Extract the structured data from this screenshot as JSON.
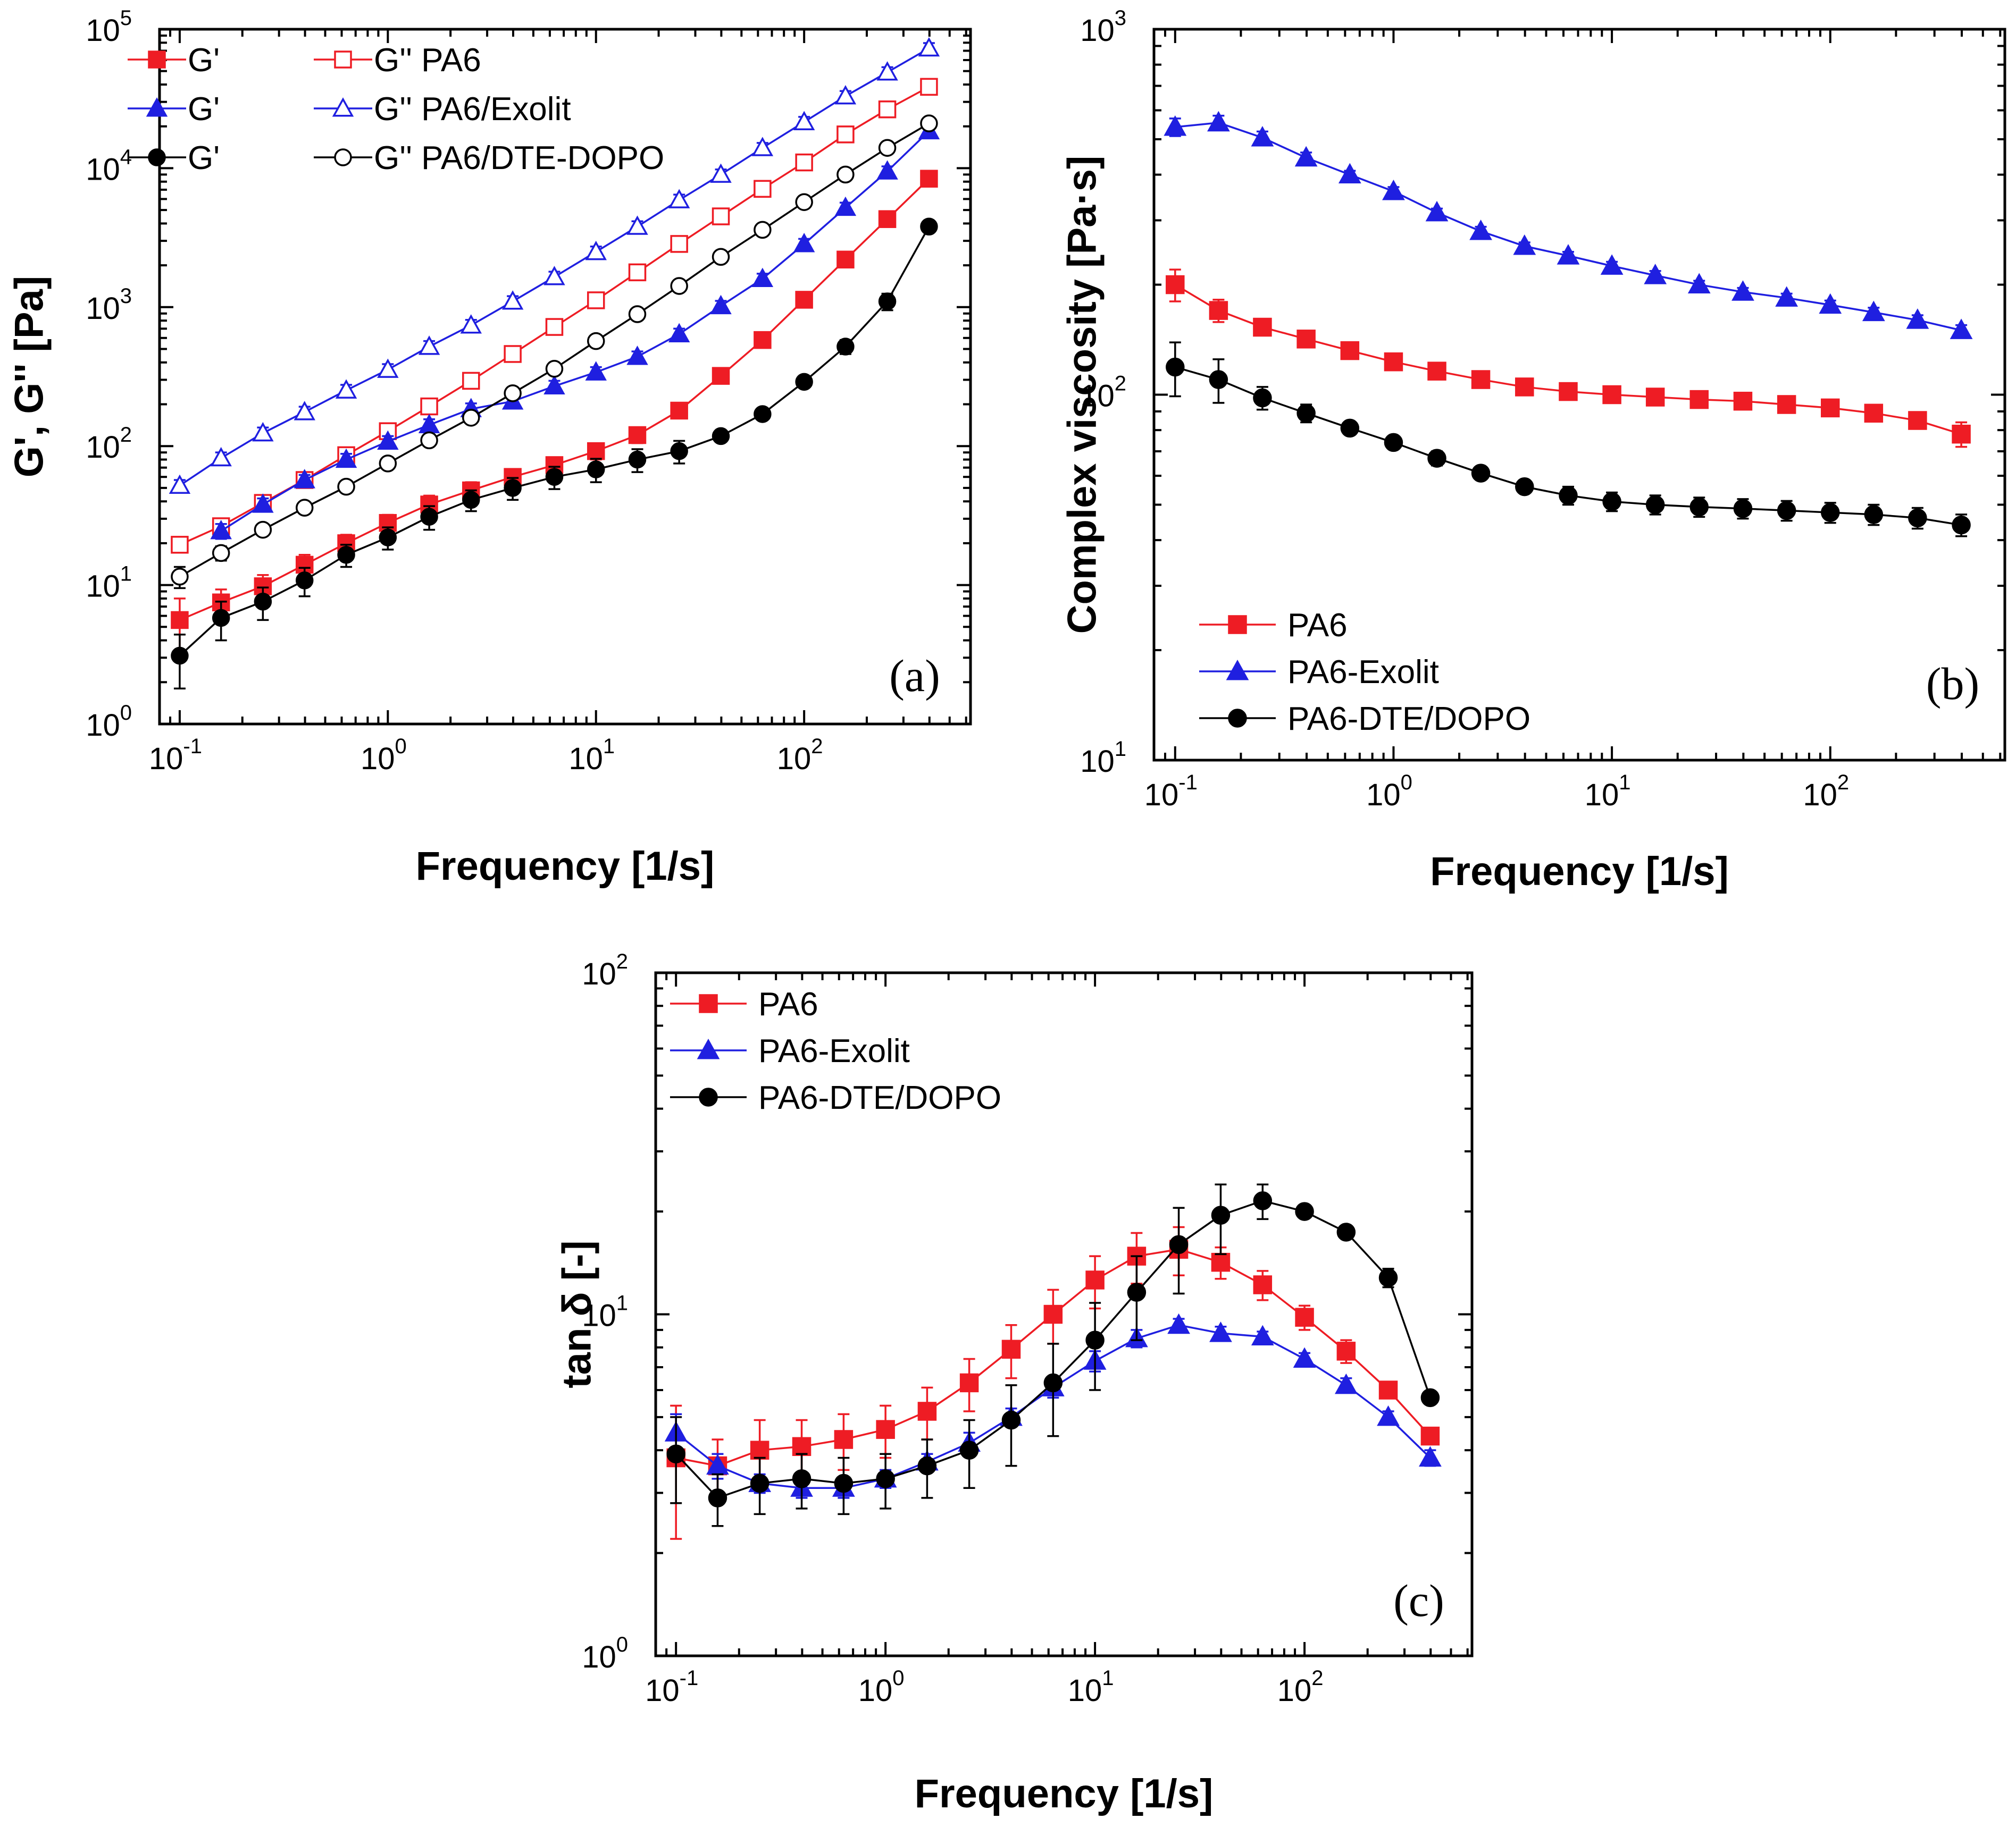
{
  "colors": {
    "PA6": "#ee1c24",
    "PA6-Exolit": "#1f1fe0",
    "PA6-DTE/DOPO": "#000000"
  },
  "chart_data": [
    {
      "id": "a",
      "type": "line",
      "panel_label": "(a)",
      "xlabel": "Frequency [1/s]",
      "ylabel": "G', G'' [Pa]",
      "xscale": "log",
      "yscale": "log",
      "xlim": [
        0.08,
        630
      ],
      "ylim": [
        1,
        100000
      ],
      "x_ticks": [
        {
          "base": "10",
          "exp": "-1"
        },
        {
          "base": "10",
          "exp": "0"
        },
        {
          "base": "10",
          "exp": "1"
        },
        {
          "base": "10",
          "exp": "2"
        }
      ],
      "y_ticks": [
        {
          "base": "10",
          "exp": "0"
        },
        {
          "base": "10",
          "exp": "1"
        },
        {
          "base": "10",
          "exp": "2"
        },
        {
          "base": "10",
          "exp": "3"
        },
        {
          "base": "10",
          "exp": "4"
        },
        {
          "base": "10",
          "exp": "5"
        }
      ],
      "legend_position": "top-left",
      "legend_layout": "two-column",
      "x": [
        0.1,
        0.158,
        0.251,
        0.398,
        0.631,
        1.0,
        1.58,
        2.51,
        3.98,
        6.31,
        10.0,
        15.8,
        25.1,
        39.8,
        63.1,
        100,
        158,
        251,
        398
      ],
      "series": [
        {
          "name": "G'",
          "legend_group": "PA6",
          "color_key": "PA6",
          "marker": "square",
          "filled": true,
          "values": [
            5.6,
            7.5,
            9.8,
            14,
            20,
            28,
            38,
            48,
            60,
            73,
            92,
            120,
            180,
            320,
            580,
            1130,
            2200,
            4300,
            8400
          ],
          "errors": [
            2.4,
            1.8,
            2.0,
            2.5,
            3,
            4,
            6,
            7,
            8,
            10,
            12,
            15,
            0,
            0,
            0,
            0,
            0,
            0,
            0
          ]
        },
        {
          "name": "G'' PA6",
          "legend_group": "PA6",
          "color_key": "PA6",
          "marker": "square",
          "filled": false,
          "values": [
            19.5,
            26.5,
            39,
            57,
            86,
            128,
            193,
            295,
            460,
            720,
            1120,
            1780,
            2850,
            4500,
            7100,
            11000,
            17500,
            26500,
            38500
          ],
          "errors": [
            2,
            3,
            4,
            5,
            8,
            10,
            0,
            30,
            40,
            60,
            90,
            140,
            200,
            350,
            500,
            800,
            1300,
            2000,
            3000
          ]
        },
        {
          "name": "G'",
          "legend_group": "PA6/Exolit",
          "color_key": "PA6-Exolit",
          "marker": "triangle",
          "filled": true,
          "values": [
            null,
            24.5,
            38,
            57,
            80,
            108,
            142,
            185,
            210,
            270,
            340,
            440,
            640,
            1020,
            1600,
            2850,
            5200,
            9500,
            18500
          ],
          "errors": [
            0,
            3,
            4,
            5,
            8,
            10,
            14,
            18,
            20,
            25,
            30,
            40,
            60,
            90,
            140,
            250,
            450,
            800,
            1500
          ]
        },
        {
          "name": "G'' PA6/Exolit",
          "legend_group": "PA6/Exolit",
          "color_key": "PA6-Exolit",
          "marker": "triangle",
          "filled": false,
          "values": [
            52,
            82,
            124,
            176,
            252,
            355,
            520,
            740,
            1100,
            1650,
            2500,
            3800,
            5900,
            9000,
            14000,
            21500,
            33000,
            49000,
            73000
          ],
          "errors": [
            5,
            8,
            12,
            16,
            24,
            34,
            50,
            70,
            100,
            150,
            230,
            350,
            550,
            800,
            1200,
            1900,
            2900,
            4300,
            6500
          ]
        },
        {
          "name": "G'",
          "legend_group": "PA6/DTE-DOPO",
          "color_key": "PA6-DTE/DOPO",
          "marker": "circle",
          "filled": true,
          "values": [
            3.1,
            5.8,
            7.6,
            10.8,
            16.5,
            22,
            31,
            41,
            50,
            60,
            68,
            80,
            92,
            118,
            170,
            290,
            520,
            1100,
            3800
          ],
          "errors": [
            1.3,
            1.8,
            2.0,
            2.5,
            3,
            4,
            6,
            7,
            9,
            11,
            13,
            15,
            17,
            10,
            0,
            0,
            60,
            150,
            0
          ]
        },
        {
          "name": "G'' PA6/DTE-DOPO",
          "legend_group": "PA6/DTE-DOPO",
          "color_key": "PA6-DTE/DOPO",
          "marker": "circle",
          "filled": false,
          "values": [
            11.5,
            17,
            25,
            36,
            51,
            75,
            110,
            160,
            240,
            360,
            570,
            890,
            1420,
            2300,
            3600,
            5700,
            9000,
            14000,
            21000
          ],
          "errors": [
            2,
            2,
            2,
            3,
            4,
            6,
            9,
            13,
            20,
            30,
            48,
            75,
            120,
            190,
            300,
            470,
            750,
            1150,
            1750
          ]
        }
      ]
    },
    {
      "id": "b",
      "type": "line",
      "panel_label": "(b)",
      "xlabel": "Frequency [1/s]",
      "ylabel": "Complex viscosity [Pa·s]",
      "xscale": "log",
      "yscale": "log",
      "xlim": [
        0.08,
        630
      ],
      "ylim": [
        10,
        1000
      ],
      "x_ticks": [
        {
          "base": "10",
          "exp": "-1"
        },
        {
          "base": "10",
          "exp": "0"
        },
        {
          "base": "10",
          "exp": "1"
        },
        {
          "base": "10",
          "exp": "2"
        }
      ],
      "y_ticks": [
        {
          "base": "10",
          "exp": "1"
        },
        {
          "base": "10",
          "exp": "2"
        },
        {
          "base": "10",
          "exp": "3"
        }
      ],
      "legend_position": "bottom-left",
      "x": [
        0.1,
        0.158,
        0.251,
        0.398,
        0.631,
        1.0,
        1.58,
        2.51,
        3.98,
        6.31,
        10.0,
        15.8,
        25.1,
        39.8,
        63.1,
        100,
        158,
        251,
        398
      ],
      "series": [
        {
          "name": "PA6",
          "color_key": "PA6",
          "marker": "square",
          "filled": true,
          "values": [
            200,
            170,
            153,
            142,
            132,
            123,
            116,
            110,
            105,
            102,
            100,
            98.5,
            97,
            96,
            94,
            92,
            89,
            85,
            78
          ],
          "errors": [
            20,
            12,
            5,
            4,
            4,
            3,
            3,
            3,
            3,
            3,
            3,
            3,
            3,
            3,
            3,
            3,
            3,
            3,
            6
          ]
        },
        {
          "name": "PA6-Exolit",
          "color_key": "PA6-Exolit",
          "marker": "triangle",
          "filled": true,
          "values": [
            540,
            555,
            505,
            445,
            400,
            360,
            315,
            280,
            255,
            240,
            225,
            212,
            200,
            191,
            184,
            176,
            168,
            160,
            150
          ],
          "errors": [
            30,
            25,
            20,
            15,
            10,
            10,
            8,
            8,
            6,
            6,
            6,
            6,
            5,
            5,
            5,
            5,
            5,
            5,
            5
          ]
        },
        {
          "name": "PA6-DTE/DOPO",
          "color_key": "PA6-DTE/DOPO",
          "marker": "circle",
          "filled": true,
          "values": [
            119,
            110,
            98,
            89,
            81,
            74,
            67,
            61,
            56,
            53,
            51,
            50,
            49.3,
            48.8,
            48.2,
            47.6,
            47,
            46,
            44
          ],
          "errors": [
            20,
            15,
            7,
            5,
            3,
            3,
            3,
            2,
            2,
            3,
            3,
            3,
            3,
            3,
            3,
            3,
            3,
            3,
            3
          ]
        }
      ]
    },
    {
      "id": "c",
      "type": "line",
      "panel_label": "(c)",
      "xlabel": "Frequency [1/s]",
      "ylabel": "tan δ [-]",
      "xscale": "log",
      "yscale": "log",
      "xlim": [
        0.08,
        630
      ],
      "ylim": [
        1,
        100
      ],
      "x_ticks": [
        {
          "base": "10",
          "exp": "-1"
        },
        {
          "base": "10",
          "exp": "0"
        },
        {
          "base": "10",
          "exp": "1"
        },
        {
          "base": "10",
          "exp": "2"
        }
      ],
      "y_ticks": [
        {
          "base": "10",
          "exp": "0"
        },
        {
          "base": "10",
          "exp": "1"
        },
        {
          "base": "10",
          "exp": "2"
        }
      ],
      "legend_position": "top-left",
      "x": [
        0.1,
        0.158,
        0.251,
        0.398,
        0.631,
        1.0,
        1.58,
        2.51,
        3.98,
        6.31,
        10.0,
        15.8,
        25.1,
        39.8,
        63.1,
        100,
        158,
        251,
        398
      ],
      "series": [
        {
          "name": "PA6",
          "color_key": "PA6",
          "marker": "square",
          "filled": true,
          "values": [
            3.8,
            3.6,
            4.0,
            4.1,
            4.3,
            4.6,
            5.2,
            6.3,
            7.9,
            10.0,
            12.6,
            14.8,
            15.5,
            14.2,
            12.2,
            9.8,
            7.8,
            6.0,
            4.4
          ],
          "errors": [
            1.6,
            0.7,
            0.9,
            0.8,
            0.8,
            0.8,
            0.9,
            1.1,
            1.4,
            1.8,
            2.2,
            2.5,
            2.5,
            1.5,
            1.2,
            0.8,
            0.6,
            0.3,
            0.2
          ]
        },
        {
          "name": "PA6-Exolit",
          "color_key": "PA6-Exolit",
          "marker": "triangle",
          "filled": true,
          "values": [
            4.5,
            3.6,
            3.2,
            3.1,
            3.1,
            3.3,
            3.7,
            4.2,
            5.0,
            6.1,
            7.3,
            8.5,
            9.3,
            8.8,
            8.6,
            7.4,
            6.2,
            5.0,
            3.8
          ],
          "errors": [
            0.6,
            0.3,
            0.2,
            0.2,
            0.2,
            0.2,
            0.2,
            0.3,
            0.3,
            0.4,
            0.5,
            0.5,
            0.4,
            0.4,
            0.3,
            0.3,
            0.3,
            0.2,
            0.2
          ]
        },
        {
          "name": "PA6-DTE/DOPO",
          "color_key": "PA6-DTE/DOPO",
          "marker": "circle",
          "filled": true,
          "values": [
            3.9,
            2.9,
            3.2,
            3.3,
            3.2,
            3.3,
            3.6,
            4.0,
            4.9,
            6.3,
            8.4,
            11.6,
            16.0,
            19.5,
            21.5,
            20.0,
            17.4,
            12.8,
            5.7
          ],
          "errors": [
            1.1,
            0.5,
            0.6,
            0.6,
            0.6,
            0.6,
            0.7,
            0.9,
            1.3,
            1.9,
            2.4,
            3.2,
            4.5,
            4.5,
            2.5,
            0.8,
            0.6,
            0.8,
            0.2
          ]
        }
      ]
    }
  ]
}
